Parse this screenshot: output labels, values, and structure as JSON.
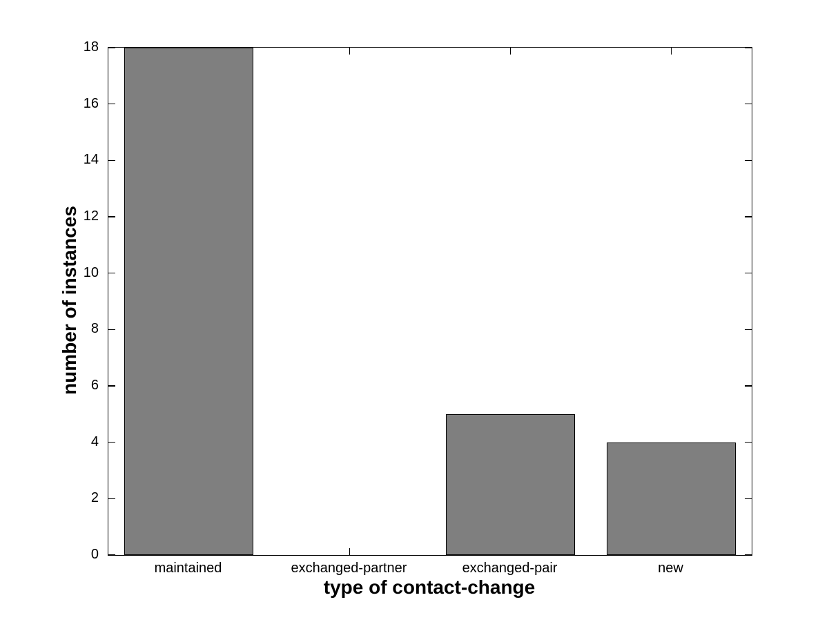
{
  "figure": {
    "background_color": "#ffffff",
    "axis_color": "#000000",
    "text_color": "#000000"
  },
  "chart_data": {
    "type": "bar",
    "title": "",
    "xlabel": "type of contact-change",
    "ylabel": "number of instances",
    "categories": [
      "maintained",
      "exchanged-partner",
      "exchanged-pair",
      "new"
    ],
    "values": [
      18,
      0,
      5,
      4
    ],
    "ylim": [
      0,
      18
    ],
    "yticks": [
      0,
      2,
      4,
      6,
      8,
      10,
      12,
      14,
      16,
      18
    ],
    "bar_fill_color": "#7f7f7f",
    "bar_edge_color": "#000000",
    "bar_width_fraction": 0.8,
    "grid": false,
    "legend": "none",
    "box": "on",
    "tick_direction": "in"
  }
}
